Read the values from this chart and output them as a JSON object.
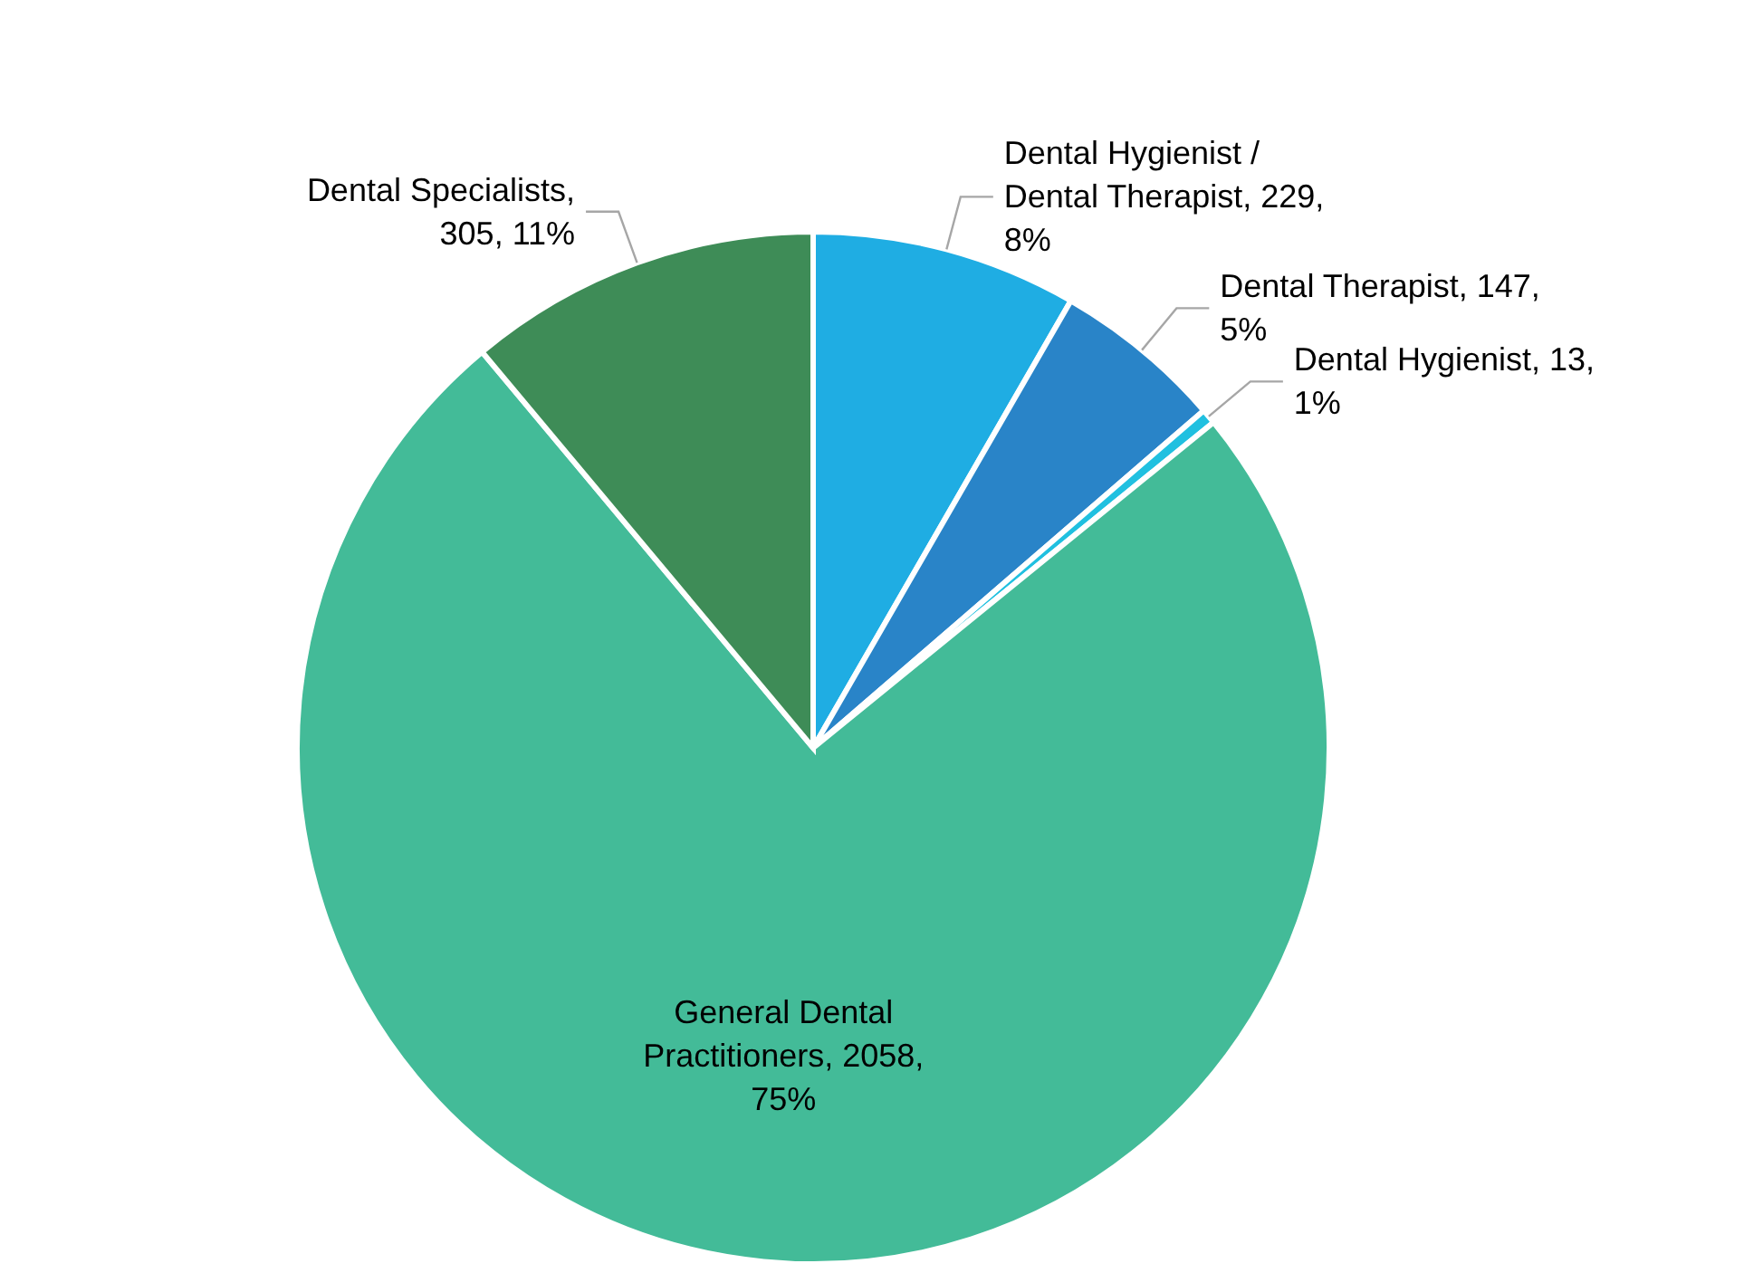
{
  "chart_data": {
    "type": "pie",
    "categories": [
      "Dental Hygienist / Dental Therapist",
      "Dental Therapist",
      "Dental Hygienist",
      "General Dental Practitioners",
      "Dental Specialists"
    ],
    "values": [
      229,
      147,
      13,
      2058,
      305
    ],
    "value_labels": [
      ", 229, 8%",
      ", 147, 5%",
      ", 13, 1%",
      ", 2058, 75%",
      ", 305, 11%"
    ],
    "colors": [
      "#1fade3",
      "#2984c8",
      "#20c0e0",
      "#43bb98",
      "#3e8c57"
    ]
  }
}
